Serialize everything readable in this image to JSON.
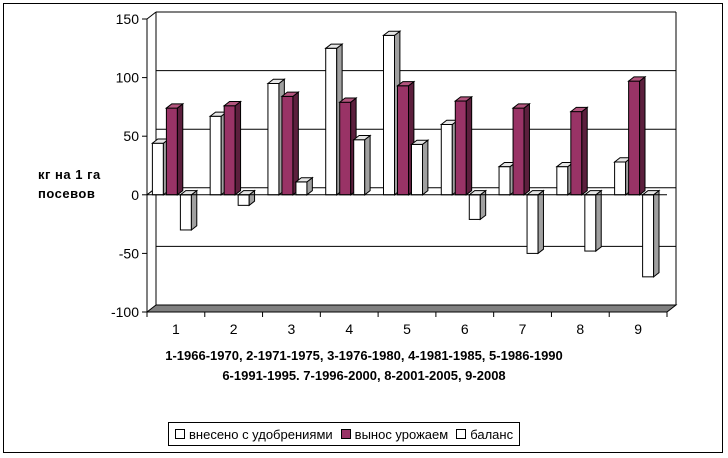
{
  "chart_data": {
    "type": "bar",
    "categories": [
      "1",
      "2",
      "3",
      "4",
      "5",
      "6",
      "7",
      "8",
      "9"
    ],
    "series": [
      {
        "name": "внесено с удобрениями",
        "values": [
          44,
          67,
          95,
          125,
          136,
          60,
          24,
          24,
          28
        ],
        "color": "#ffffff"
      },
      {
        "name": "вынос урожаем",
        "values": [
          74,
          76,
          84,
          79,
          93,
          80,
          74,
          71,
          97
        ],
        "color": "#993366"
      },
      {
        "name": "баланс",
        "values": [
          -30,
          -9,
          11,
          47,
          43,
          -21,
          -50,
          -48,
          -70
        ],
        "color": "#ffffff"
      }
    ],
    "ylim": [
      -100,
      150
    ],
    "yticks": [
      "-100",
      "-50",
      "0",
      "50",
      "100",
      "150"
    ],
    "ylabel_lines": [
      "кг на 1 га",
      "посевов"
    ],
    "xlabel_lines": [
      "1-1966-1970, 2-1971-1975, 3-1976-1980, 4-1981-1985, 5-1986-1990",
      "6-1991-1995. 7-1996-2000, 8-2001-2005, 9-2008"
    ],
    "gridlines": true,
    "legend_position": "bottom",
    "wall_color": "#808080"
  }
}
